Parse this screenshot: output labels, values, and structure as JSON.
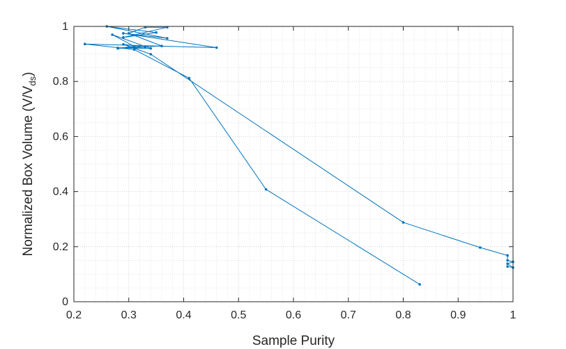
{
  "chart_data": {
    "type": "line",
    "xlabel": "Sample Purity",
    "ylabel": "Normalized Box Volume (V/V",
    "ylabel_subscript": "ds",
    "ylabel_close": ")",
    "xlim": [
      0.2,
      1
    ],
    "ylim": [
      0,
      1
    ],
    "xticks": [
      0.2,
      0.3,
      0.4,
      0.5,
      0.6,
      0.7,
      0.8,
      0.9,
      1
    ],
    "xtick_labels": [
      "0.2",
      "0.3",
      "0.4",
      "0.5",
      "0.6",
      "0.7",
      "0.8",
      "0.9",
      "1"
    ],
    "yticks": [
      0,
      0.2,
      0.4,
      0.6,
      0.8,
      1
    ],
    "ytick_labels": [
      "0",
      "0.2",
      "0.4",
      "0.6",
      "0.8",
      "1"
    ],
    "grid": true,
    "minor_grid": true,
    "line_color": "#0072BD",
    "series": [
      {
        "x": [
          0.83,
          0.55,
          0.41,
          0.31,
          0.22,
          0.46,
          0.29,
          0.37,
          0.26,
          0.35,
          0.29,
          0.37,
          0.33,
          0.3,
          0.36,
          0.28,
          0.34,
          0.27,
          0.31,
          0.28,
          0.33,
          0.29,
          0.34,
          0.8,
          0.94,
          0.99,
          0.99,
          1.0,
          0.99,
          1.0,
          0.99
        ],
        "y": [
          0.063,
          0.408,
          0.812,
          0.916,
          0.936,
          0.923,
          0.975,
          0.957,
          1.0,
          0.978,
          0.96,
          0.997,
          0.997,
          0.975,
          0.929,
          0.922,
          0.92,
          0.97,
          0.928,
          0.92,
          0.925,
          0.935,
          0.899,
          0.288,
          0.197,
          0.168,
          0.15,
          0.145,
          0.138,
          0.124,
          0.128
        ]
      }
    ]
  }
}
